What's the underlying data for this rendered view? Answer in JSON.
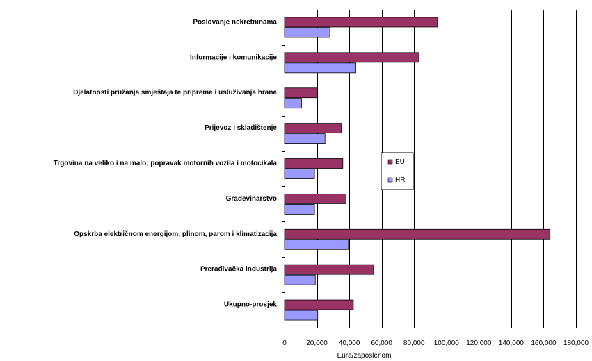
{
  "chart_data": {
    "type": "bar",
    "orientation": "horizontal",
    "categories": [
      "Poslovanje nekretninama",
      "Informacije i komunikacije",
      "Djelatnosti pružanja smještaja te pripreme i usluživanja hrane",
      "Prijevoz i skladištenje",
      "Trgovina na veliko i na malo; popravak motornih vozila i motocikala",
      "Građevinarstvo",
      "Opskrba električnom energijom, plinom, parom i klimatizacija",
      "Prerađivačka industrija",
      "Ukupno-prosjek"
    ],
    "series": [
      {
        "name": "EU",
        "color": "#993366",
        "values": [
          94500,
          83000,
          20000,
          35000,
          36000,
          38000,
          164000,
          55000,
          42500
        ]
      },
      {
        "name": "HR",
        "color": "#9999ff",
        "values": [
          28000,
          44000,
          10500,
          25000,
          18500,
          18500,
          39500,
          19000,
          20500
        ]
      }
    ],
    "title": "",
    "xlabel": "Eura/zaposlenom",
    "ylabel": "",
    "xlim": [
      0,
      180000
    ],
    "x_ticks": [
      0,
      20000,
      40000,
      60000,
      80000,
      100000,
      120000,
      140000,
      160000,
      180000
    ],
    "x_tick_labels": [
      "0",
      "20,000",
      "40,000",
      "60,000",
      "80,000",
      "100,000",
      "120,000",
      "140,000",
      "160,000",
      "180,000"
    ],
    "grid": "vertical",
    "legend": "inside-center"
  }
}
